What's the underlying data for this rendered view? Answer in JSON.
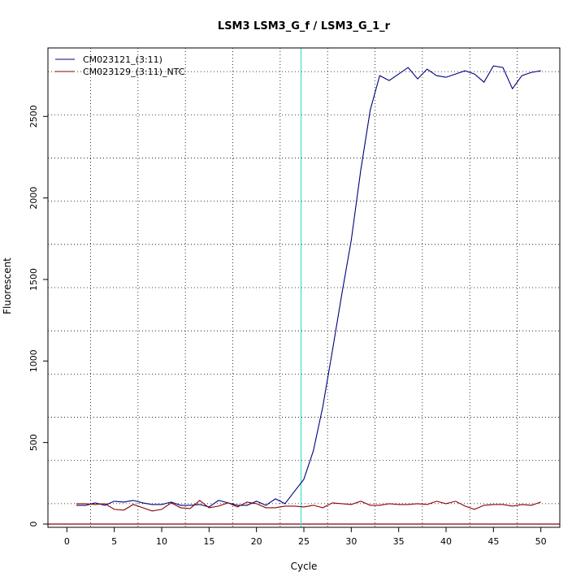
{
  "chart_data": {
    "type": "line",
    "title": "LSM3  LSM3_G_f / LSM3_G_1_r",
    "xlabel": "Cycle",
    "ylabel": "Fluorescent",
    "xlim": [
      -2,
      52
    ],
    "ylim": [
      -20,
      2920
    ],
    "x_ticks": [
      0,
      5,
      10,
      15,
      20,
      25,
      30,
      35,
      40,
      45,
      50
    ],
    "x_tick_labels": [
      "0",
      "5",
      "10",
      "15",
      "20",
      "25",
      "30",
      "35",
      "40",
      "45",
      "50"
    ],
    "y_ticks": [
      0,
      500,
      1000,
      1500,
      2000,
      2500
    ],
    "y_tick_labels": [
      "0",
      "500",
      "1000",
      "1500",
      "2000",
      "2500"
    ],
    "x_grid": [
      2.5,
      7.5,
      12.5,
      17.5,
      22.5,
      27.5,
      32.5,
      37.5,
      42.5,
      47.5
    ],
    "y_grid": [
      125,
      390,
      655,
      920,
      1185,
      1450,
      1715,
      1980,
      2245,
      2510,
      2775
    ],
    "grid": true,
    "legend_position": "top-left",
    "threshold_line": {
      "x": 24.7,
      "color": "#40e0d0"
    },
    "baseline": {
      "y": 0,
      "color": "#8b0000"
    },
    "series": [
      {
        "name": "CM023121_(3:11)",
        "color": "#00007f",
        "x": [
          1,
          2,
          3,
          4,
          5,
          6,
          7,
          8,
          9,
          10,
          11,
          12,
          13,
          14,
          15,
          16,
          17,
          18,
          19,
          20,
          21,
          22,
          23,
          24,
          25,
          26,
          27,
          28,
          29,
          30,
          31,
          32,
          33,
          34,
          35,
          36,
          37,
          38,
          39,
          40,
          41,
          42,
          43,
          44,
          45,
          46,
          47,
          48,
          49,
          50
        ],
        "y": [
          115,
          115,
          130,
          115,
          140,
          135,
          145,
          130,
          120,
          120,
          135,
          115,
          115,
          120,
          105,
          145,
          130,
          115,
          115,
          140,
          115,
          155,
          125,
          200,
          275,
          450,
          720,
          1060,
          1410,
          1740,
          2170,
          2540,
          2750,
          2720,
          2760,
          2800,
          2730,
          2790,
          2750,
          2740,
          2760,
          2780,
          2760,
          2710,
          2810,
          2800,
          2670,
          2750,
          2770,
          2780
        ]
      },
      {
        "name": "CM023129_(3:11)_NTC",
        "color": "#8b0000",
        "x": [
          1,
          2,
          3,
          4,
          5,
          6,
          7,
          8,
          9,
          10,
          11,
          12,
          13,
          14,
          15,
          16,
          17,
          18,
          19,
          20,
          21,
          22,
          23,
          24,
          25,
          26,
          27,
          28,
          29,
          30,
          31,
          32,
          33,
          34,
          35,
          36,
          37,
          38,
          39,
          40,
          41,
          42,
          43,
          44,
          45,
          46,
          47,
          48,
          49,
          50
        ],
        "y": [
          125,
          125,
          120,
          125,
          90,
          85,
          120,
          100,
          80,
          90,
          130,
          100,
          95,
          145,
          100,
          110,
          130,
          105,
          135,
          125,
          100,
          100,
          110,
          110,
          105,
          115,
          100,
          130,
          125,
          120,
          140,
          115,
          115,
          125,
          120,
          120,
          125,
          120,
          140,
          125,
          140,
          110,
          90,
          115,
          120,
          120,
          110,
          120,
          115,
          135
        ]
      }
    ]
  }
}
